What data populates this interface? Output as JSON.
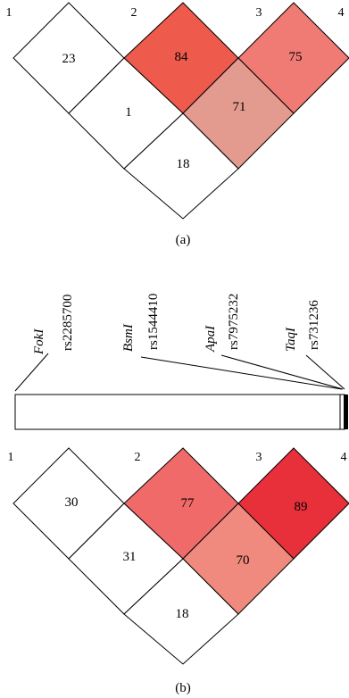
{
  "panel_a": {
    "markers": [
      "1",
      "2",
      "3",
      "4"
    ],
    "cells": [
      {
        "pair": "1-2",
        "value": "23",
        "color": "#ffffff"
      },
      {
        "pair": "2-3",
        "value": "84",
        "color": "#ee5a4c"
      },
      {
        "pair": "3-4",
        "value": "75",
        "color": "#f07a74"
      },
      {
        "pair": "1-3",
        "value": "1",
        "color": "#ffffff"
      },
      {
        "pair": "2-4",
        "value": "71",
        "color": "#e49b8f"
      },
      {
        "pair": "1-4",
        "value": "18",
        "color": "#ffffff"
      }
    ],
    "caption": "(a)"
  },
  "snp_map": {
    "snps": [
      {
        "enzyme": "FokI",
        "rs": "rs2285700"
      },
      {
        "enzyme": "BsmI",
        "rs": "rs1544410"
      },
      {
        "enzyme": "ApaI",
        "rs": "rs7975232"
      },
      {
        "enzyme": "TaqI",
        "rs": "rs731236"
      }
    ]
  },
  "panel_b": {
    "markers": [
      "1",
      "2",
      "3",
      "4"
    ],
    "cells": [
      {
        "pair": "1-2",
        "value": "30",
        "color": "#ffffff"
      },
      {
        "pair": "2-3",
        "value": "77",
        "color": "#f06a6a"
      },
      {
        "pair": "3-4",
        "value": "89",
        "color": "#e8303a"
      },
      {
        "pair": "1-3",
        "value": "31",
        "color": "#ffffff"
      },
      {
        "pair": "2-4",
        "value": "70",
        "color": "#f08a7e"
      },
      {
        "pair": "1-4",
        "value": "18",
        "color": "#ffffff"
      }
    ],
    "caption": "(b)"
  }
}
